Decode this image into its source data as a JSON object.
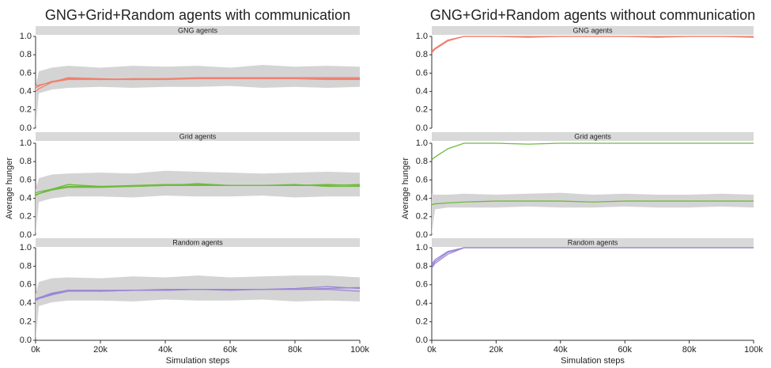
{
  "chart_data": [
    {
      "type": "line",
      "title": "GNG+Grid+Random agents with communication",
      "xlabel": "Simulation steps",
      "ylabel": "Average hunger",
      "x": [
        0,
        1000,
        5000,
        10000,
        20000,
        30000,
        40000,
        50000,
        60000,
        70000,
        80000,
        90000,
        100000
      ],
      "xlim": [
        0,
        100000
      ],
      "xticks": [
        {
          "value": 0,
          "label": "0k"
        },
        {
          "value": 20000,
          "label": "20k"
        },
        {
          "value": 40000,
          "label": "40k"
        },
        {
          "value": 60000,
          "label": "60k"
        },
        {
          "value": 80000,
          "label": "80k"
        },
        {
          "value": 100000,
          "label": "100k"
        }
      ],
      "ylim": [
        0,
        1
      ],
      "yticks": [
        {
          "value": 0,
          "label": "0.0"
        },
        {
          "value": 0.2,
          "label": "0.2"
        },
        {
          "value": 0.4,
          "label": "0.4"
        },
        {
          "value": 0.6,
          "label": "0.6"
        },
        {
          "value": 0.8,
          "label": "0.8"
        },
        {
          "value": 1,
          "label": "1.0"
        }
      ],
      "facets": [
        {
          "title": "GNG agents",
          "band": {
            "color": "#d4d4d4",
            "low": [
              0,
              0.38,
              0.42,
              0.44,
              0.45,
              0.44,
              0.45,
              0.45,
              0.46,
              0.44,
              0.45,
              0.44,
              0.45
            ],
            "high": [
              0.45,
              0.62,
              0.66,
              0.68,
              0.66,
              0.68,
              0.67,
              0.68,
              0.66,
              0.69,
              0.67,
              0.68,
              0.67
            ]
          },
          "series": [
            {
              "color": "#f08070",
              "values": [
                0.4,
                0.43,
                0.5,
                0.55,
                0.54,
                0.53,
                0.54,
                0.55,
                0.55,
                0.55,
                0.55,
                0.55,
                0.55
              ]
            },
            {
              "color": "#f08070",
              "values": [
                0.44,
                0.46,
                0.51,
                0.54,
                0.53,
                0.54,
                0.54,
                0.54,
                0.55,
                0.55,
                0.54,
                0.54,
                0.54
              ]
            },
            {
              "color": "#f08070",
              "values": [
                0.46,
                0.47,
                0.5,
                0.53,
                0.53,
                0.53,
                0.53,
                0.54,
                0.54,
                0.54,
                0.54,
                0.53,
                0.53
              ]
            }
          ]
        },
        {
          "title": "Grid agents",
          "band": {
            "color": "#d4d4d4",
            "low": [
              0,
              0.36,
              0.4,
              0.42,
              0.42,
              0.41,
              0.43,
              0.42,
              0.42,
              0.43,
              0.41,
              0.42,
              0.42
            ],
            "high": [
              0.5,
              0.62,
              0.66,
              0.67,
              0.68,
              0.67,
              0.7,
              0.69,
              0.68,
              0.67,
              0.68,
              0.69,
              0.68
            ]
          },
          "series": [
            {
              "color": "#6dbb3c",
              "values": [
                0.44,
                0.45,
                0.5,
                0.55,
                0.53,
                0.54,
                0.55,
                0.55,
                0.54,
                0.54,
                0.54,
                0.55,
                0.54
              ]
            },
            {
              "color": "#6dbb3c",
              "values": [
                0.46,
                0.47,
                0.5,
                0.53,
                0.53,
                0.53,
                0.54,
                0.56,
                0.54,
                0.54,
                0.55,
                0.53,
                0.53
              ]
            },
            {
              "color": "#6dbb3c",
              "values": [
                0.43,
                0.45,
                0.49,
                0.52,
                0.52,
                0.53,
                0.54,
                0.54,
                0.54,
                0.54,
                0.54,
                0.54,
                0.55
              ]
            }
          ]
        },
        {
          "title": "Random agents",
          "band": {
            "color": "#d4d4d4",
            "low": [
              0,
              0.37,
              0.41,
              0.43,
              0.43,
              0.42,
              0.44,
              0.43,
              0.43,
              0.44,
              0.42,
              0.43,
              0.42
            ],
            "high": [
              0.5,
              0.63,
              0.67,
              0.68,
              0.67,
              0.69,
              0.68,
              0.7,
              0.68,
              0.69,
              0.7,
              0.7,
              0.68
            ]
          },
          "series": [
            {
              "color": "#9b86d6",
              "values": [
                0.44,
                0.46,
                0.5,
                0.54,
                0.53,
                0.54,
                0.55,
                0.55,
                0.55,
                0.55,
                0.56,
                0.58,
                0.56
              ]
            },
            {
              "color": "#9b86d6",
              "values": [
                0.45,
                0.46,
                0.51,
                0.54,
                0.54,
                0.54,
                0.54,
                0.55,
                0.55,
                0.55,
                0.55,
                0.55,
                0.53
              ]
            },
            {
              "color": "#9b86d6",
              "values": [
                0.43,
                0.45,
                0.49,
                0.53,
                0.53,
                0.54,
                0.54,
                0.55,
                0.54,
                0.55,
                0.55,
                0.56,
                0.57
              ]
            }
          ]
        }
      ]
    },
    {
      "type": "line",
      "title": "GNG+Grid+Random agents without communication",
      "xlabel": "Simulation steps",
      "ylabel": "Average hunger",
      "x": [
        0,
        1000,
        5000,
        10000,
        20000,
        30000,
        40000,
        50000,
        60000,
        70000,
        80000,
        90000,
        100000
      ],
      "xlim": [
        0,
        100000
      ],
      "xticks": [
        {
          "value": 0,
          "label": "0k"
        },
        {
          "value": 20000,
          "label": "20k"
        },
        {
          "value": 40000,
          "label": "40k"
        },
        {
          "value": 60000,
          "label": "60k"
        },
        {
          "value": 80000,
          "label": "80k"
        },
        {
          "value": 100000,
          "label": "100k"
        }
      ],
      "ylim": [
        0,
        1
      ],
      "yticks": [
        {
          "value": 0,
          "label": "0.0"
        },
        {
          "value": 0.2,
          "label": "0.2"
        },
        {
          "value": 0.4,
          "label": "0.4"
        },
        {
          "value": 0.6,
          "label": "0.6"
        },
        {
          "value": 0.8,
          "label": "0.8"
        },
        {
          "value": 1,
          "label": "1.0"
        }
      ],
      "facets": [
        {
          "title": "GNG agents",
          "series": [
            {
              "color": "#f08070",
              "values": [
                0.82,
                0.86,
                0.95,
                1.0,
                1.0,
                0.99,
                1.0,
                1.0,
                1.0,
                1.0,
                1.0,
                1.0,
                1.0
              ]
            },
            {
              "color": "#f08070",
              "values": [
                0.84,
                0.87,
                0.96,
                1.0,
                1.0,
                1.0,
                1.0,
                1.0,
                1.0,
                0.99,
                1.0,
                1.0,
                0.99
              ]
            }
          ]
        },
        {
          "title": "Grid agents",
          "band": {
            "color": "#d4d4d4",
            "low": [
              0,
              0.28,
              0.3,
              0.3,
              0.3,
              0.31,
              0.3,
              0.3,
              0.31,
              0.3,
              0.3,
              0.31,
              0.3
            ],
            "high": [
              0.45,
              0.44,
              0.44,
              0.45,
              0.44,
              0.45,
              0.46,
              0.44,
              0.45,
              0.44,
              0.44,
              0.45,
              0.44
            ]
          },
          "series": [
            {
              "color": "#6dbb3c",
              "values": [
                0.82,
                0.85,
                0.94,
                1.0,
                1.0,
                0.99,
                1.0,
                1.0,
                1.0,
                1.0,
                1.0,
                1.0,
                1.0
              ]
            },
            {
              "color": "#6dbb3c",
              "values": [
                0.33,
                0.34,
                0.35,
                0.36,
                0.37,
                0.37,
                0.37,
                0.36,
                0.37,
                0.37,
                0.37,
                0.37,
                0.37
              ]
            }
          ]
        },
        {
          "title": "Random agents",
          "series": [
            {
              "color": "#9b86d6",
              "values": [
                0.78,
                0.83,
                0.93,
                1.0,
                1.0,
                1.0,
                1.0,
                1.0,
                1.0,
                1.0,
                1.0,
                1.0,
                1.0
              ]
            },
            {
              "color": "#9b86d6",
              "values": [
                0.8,
                0.85,
                0.95,
                1.0,
                1.0,
                1.0,
                1.0,
                1.0,
                1.0,
                1.0,
                1.0,
                1.0,
                1.0
              ]
            },
            {
              "color": "#9b86d6",
              "values": [
                0.82,
                0.87,
                0.96,
                1.0,
                1.0,
                1.0,
                1.0,
                1.0,
                1.0,
                1.0,
                1.0,
                1.0,
                1.0
              ]
            }
          ]
        }
      ]
    }
  ]
}
